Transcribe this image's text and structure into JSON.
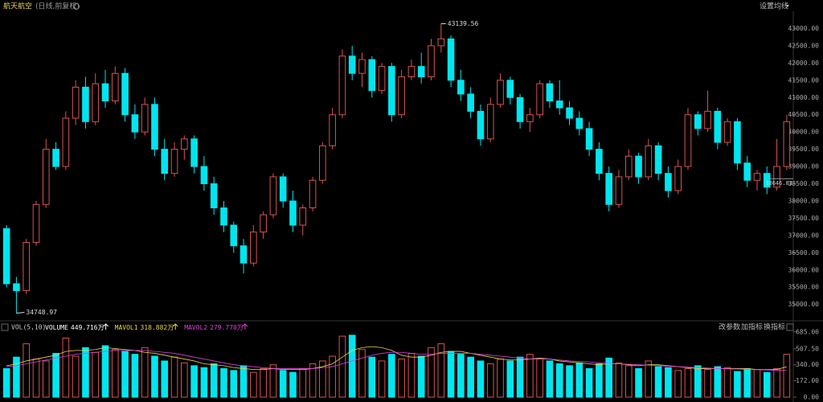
{
  "chart_data": [
    {
      "type": "candlestick",
      "title": "航天航空",
      "subtitle": "(日线,前复权)",
      "settings_button": "设置均线",
      "up_color": "#d9534f",
      "down_color": "#00e5ee",
      "open": [
        37200,
        35600,
        35400,
        36800,
        37900,
        39500,
        39000,
        40400,
        41300,
        40300,
        41400,
        40900,
        41700,
        40500,
        40000,
        40800,
        39500,
        38800,
        39500,
        39800,
        39000,
        38500,
        37800,
        37300,
        36700,
        36200,
        37100,
        37600,
        38700,
        38000,
        37300,
        37800,
        38600,
        39600,
        40500,
        42200,
        41700,
        42100,
        41200,
        41900,
        40500,
        41600,
        41900,
        41600,
        42500,
        42700,
        41500,
        41100,
        40600,
        39800,
        40800,
        41500,
        41000,
        40300,
        40500,
        41400,
        40900,
        40700,
        40400,
        40100,
        39500,
        38800,
        37900,
        38700,
        39300,
        38700,
        39600,
        38800,
        38300,
        39000,
        40500,
        40100,
        40600,
        39700,
        40300,
        39100,
        38600,
        38800,
        38400,
        39000
      ],
      "high": [
        37300,
        35800,
        36900,
        38000,
        39800,
        39700,
        40600,
        41500,
        41600,
        41700,
        41800,
        41900,
        41850,
        40800,
        41000,
        41000,
        39800,
        39700,
        39900,
        39900,
        39300,
        38700,
        38000,
        37400,
        36900,
        37300,
        37700,
        38800,
        38800,
        38300,
        37900,
        38700,
        39700,
        40700,
        42400,
        42500,
        42300,
        42200,
        42000,
        42000,
        41800,
        42100,
        42300,
        42700,
        43139.56,
        42800,
        41800,
        41300,
        40800,
        41000,
        41700,
        41600,
        41100,
        40700,
        41500,
        41500,
        41500,
        40900,
        40600,
        40300,
        39700,
        39000,
        38900,
        39500,
        39400,
        39800,
        39700,
        39000,
        39200,
        40700,
        40600,
        41200,
        40700,
        40400,
        40400,
        39300,
        38900,
        39000,
        39800,
        40500
      ],
      "low": [
        35500,
        34748.97,
        35300,
        36700,
        37800,
        38900,
        38900,
        40200,
        40100,
        40200,
        40700,
        40800,
        40300,
        39800,
        39900,
        39300,
        38600,
        38700,
        39200,
        38800,
        38300,
        37600,
        37100,
        36500,
        35900,
        36100,
        36900,
        37500,
        37800,
        37100,
        37000,
        37700,
        38500,
        39500,
        40400,
        41500,
        41300,
        41000,
        41100,
        40300,
        40400,
        41500,
        41400,
        41500,
        42300,
        41300,
        40900,
        40400,
        39600,
        39700,
        40700,
        40800,
        40100,
        40000,
        40400,
        40700,
        40500,
        40200,
        39900,
        39300,
        38600,
        37700,
        37800,
        38600,
        38500,
        38600,
        38600,
        38100,
        38200,
        38900,
        39900,
        40000,
        39500,
        39600,
        38900,
        38400,
        38300,
        38200,
        38300,
        38900
      ],
      "close": [
        35600,
        35400,
        36800,
        37900,
        39500,
        39000,
        40400,
        41300,
        40300,
        41400,
        40900,
        41700,
        40500,
        40000,
        40800,
        39500,
        38800,
        39500,
        39800,
        39000,
        38500,
        37800,
        37300,
        36700,
        36200,
        37100,
        37600,
        38700,
        38000,
        37300,
        37800,
        38600,
        39600,
        40500,
        42200,
        41700,
        42100,
        41200,
        41900,
        40500,
        41600,
        41900,
        41600,
        42500,
        42700,
        41500,
        41100,
        40600,
        39800,
        40800,
        41500,
        41000,
        40300,
        40500,
        41400,
        40900,
        40700,
        40400,
        40100,
        39500,
        38800,
        37900,
        38700,
        39300,
        38700,
        39600,
        38800,
        38300,
        39000,
        40500,
        40100,
        40600,
        39700,
        40300,
        39100,
        38600,
        38800,
        38400,
        39000,
        40300
      ],
      "ylim": [
        34550,
        43500
      ],
      "yticks": [
        {
          "value": 35000,
          "label": "35000.00"
        },
        {
          "value": 35500,
          "label": "35500.00"
        },
        {
          "value": 36000,
          "label": "36000.00"
        },
        {
          "value": 36500,
          "label": "36500.00"
        },
        {
          "value": 37000,
          "label": "37000.00"
        },
        {
          "value": 37500,
          "label": "37500.00"
        },
        {
          "value": 38000,
          "label": "38000.00"
        },
        {
          "value": 38500,
          "label": "38500.00"
        },
        {
          "value": 39000,
          "label": "39000.00"
        },
        {
          "value": 39500,
          "label": "39500.00"
        },
        {
          "value": 40000,
          "label": "40000.00"
        },
        {
          "value": 40500,
          "label": "40500.00"
        },
        {
          "value": 41000,
          "label": "41000.00"
        },
        {
          "value": 41500,
          "label": "41500.00"
        },
        {
          "value": 42000,
          "label": "42000.00"
        },
        {
          "value": 42500,
          "label": "42500.00"
        },
        {
          "value": 43000,
          "label": "43000.00"
        }
      ],
      "max_label": {
        "value": 43139.56,
        "label": "43139.56"
      },
      "min_label": {
        "value": 34748.97,
        "label": "34748.97"
      },
      "price_line": {
        "value": 38646.83,
        "label": "38646.83"
      }
    },
    {
      "type": "volume",
      "title": "VOL(5,10)",
      "buttons": [
        "改参数",
        "加指标",
        "换指标"
      ],
      "series": [
        {
          "name": "VOLUME",
          "color": "#ffffff",
          "last_label": "449.716万",
          "values": [
            300,
            420,
            560,
            400,
            380,
            460,
            620,
            430,
            520,
            470,
            540,
            500,
            480,
            450,
            520,
            430,
            380,
            420,
            360,
            330,
            310,
            350,
            300,
            280,
            330,
            260,
            300,
            340,
            280,
            260,
            300,
            350,
            380,
            430,
            640,
            650,
            500,
            420,
            380,
            450,
            400,
            460,
            430,
            520,
            560,
            480,
            450,
            420,
            380,
            350,
            400,
            380,
            420,
            450,
            400,
            380,
            350,
            330,
            360,
            300,
            350,
            410,
            360,
            330,
            300,
            380,
            320,
            310,
            280,
            300,
            330,
            290,
            320,
            310,
            270,
            300,
            290,
            260,
            300,
            449.716
          ]
        },
        {
          "name": "MAVOL1",
          "color": "#e8d44d",
          "last_label": "318.882万",
          "values": [
            330,
            350,
            380,
            400,
            420,
            440,
            480,
            490,
            490,
            500,
            520,
            510,
            500,
            490,
            470,
            460,
            440,
            420,
            400,
            380,
            350,
            340,
            330,
            310,
            300,
            290,
            290,
            300,
            290,
            290,
            290,
            300,
            320,
            350,
            420,
            490,
            520,
            530,
            520,
            490,
            440,
            420,
            420,
            440,
            470,
            480,
            480,
            460,
            440,
            420,
            400,
            390,
            390,
            400,
            410,
            400,
            380,
            370,
            360,
            350,
            340,
            350,
            350,
            340,
            330,
            340,
            340,
            330,
            320,
            310,
            300,
            300,
            300,
            300,
            300,
            300,
            290,
            290,
            290,
            318.882
          ]
        },
        {
          "name": "MAVOL2",
          "color": "#e040e0",
          "last_label": "279.770万",
          "values": [
            320,
            330,
            350,
            370,
            390,
            410,
            430,
            450,
            460,
            470,
            480,
            490,
            490,
            490,
            490,
            480,
            470,
            460,
            440,
            420,
            400,
            380,
            360,
            340,
            330,
            320,
            310,
            300,
            300,
            300,
            300,
            300,
            310,
            320,
            350,
            380,
            410,
            440,
            460,
            470,
            470,
            460,
            450,
            450,
            460,
            460,
            460,
            460,
            450,
            440,
            430,
            420,
            410,
            400,
            400,
            400,
            390,
            380,
            375,
            370,
            360,
            355,
            350,
            345,
            340,
            335,
            330,
            325,
            320,
            315,
            310,
            305,
            300,
            298,
            295,
            292,
            288,
            285,
            282,
            279.77
          ]
        }
      ],
      "ylim": [
        0,
        700
      ],
      "yticks": [
        {
          "value": 0,
          "label": "0.00"
        },
        {
          "value": 172,
          "label": "172.00"
        },
        {
          "value": 340,
          "label": "340.00"
        },
        {
          "value": 507.5,
          "label": "507.50"
        },
        {
          "value": 685,
          "label": "685.00"
        }
      ]
    }
  ]
}
